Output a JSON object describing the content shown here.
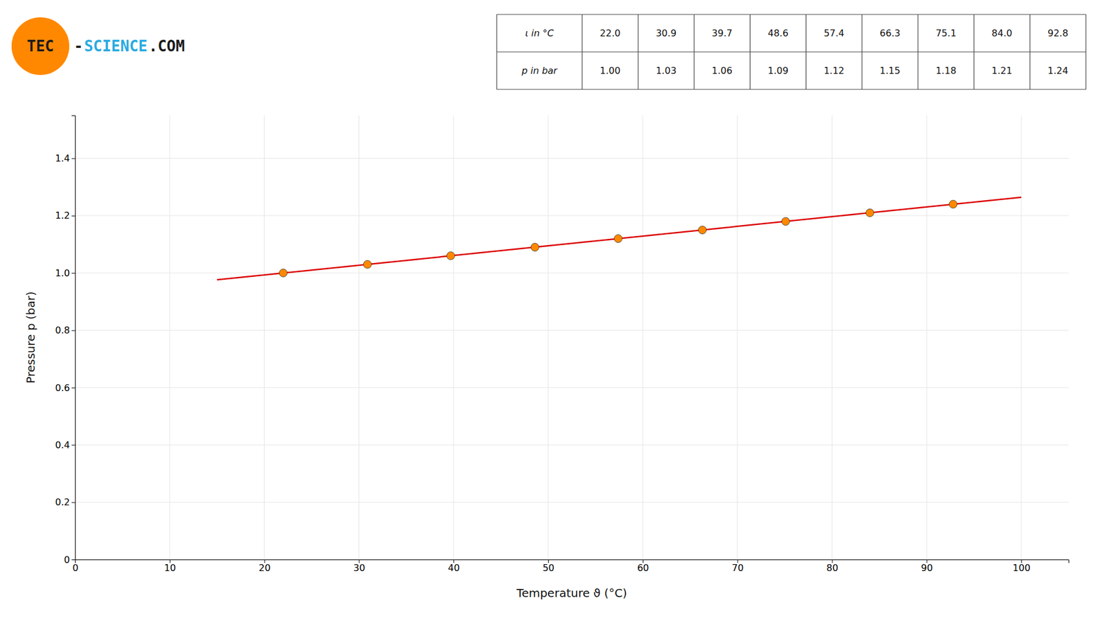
{
  "chart_data": {
    "type": "scatter",
    "xlabel": "Temperature ϑ (°C)",
    "ylabel": "Pressure p (bar)",
    "xlim": [
      0,
      105
    ],
    "ylim": [
      0,
      1.55
    ],
    "xticks": [
      0,
      10,
      20,
      30,
      40,
      50,
      60,
      70,
      80,
      90,
      100
    ],
    "yticks": [
      0,
      0.2,
      0.4,
      0.6,
      0.8,
      {
        "value": 1.0,
        "label": "1.0"
      },
      1.2,
      1.4
    ],
    "grid": true,
    "series": [
      {
        "type": "line",
        "x": [
          15,
          100
        ],
        "values": [
          0.9762,
          1.26433
        ],
        "color": "#dd0000",
        "line_style": "solid"
      },
      {
        "type": "scatter",
        "x": [
          22.0,
          30.9,
          39.7,
          48.6,
          57.4,
          66.3,
          75.1,
          84.0,
          92.8
        ],
        "values": [
          1.0,
          1.03,
          1.06,
          1.09,
          1.12,
          1.15,
          1.18,
          1.21,
          1.24
        ],
        "color": "#ff8800",
        "marker": "circle"
      }
    ],
    "table": {
      "rows": [
        {
          "label": "ι in °C",
          "cells": [
            "22.0",
            "30.9",
            "39.7",
            "48.6",
            "57.4",
            "66.3",
            "75.1",
            "84.0",
            "92.8"
          ]
        },
        {
          "label": "p in bar",
          "cells": [
            "1.00",
            "1.03",
            "1.06",
            "1.09",
            "1.12",
            "1.15",
            "1.18",
            "1.21",
            "1.24"
          ]
        }
      ]
    },
    "annotations": [
      {
        "text": "TEC",
        "color": "#1a1a1a",
        "background": "#ff8800"
      },
      {
        "text": "-",
        "color": "#1a1a1a"
      },
      {
        "text": "SCIENCE",
        "color": "#29aae1"
      },
      {
        "text": ".COM",
        "color": "#1a1a1a"
      }
    ]
  }
}
